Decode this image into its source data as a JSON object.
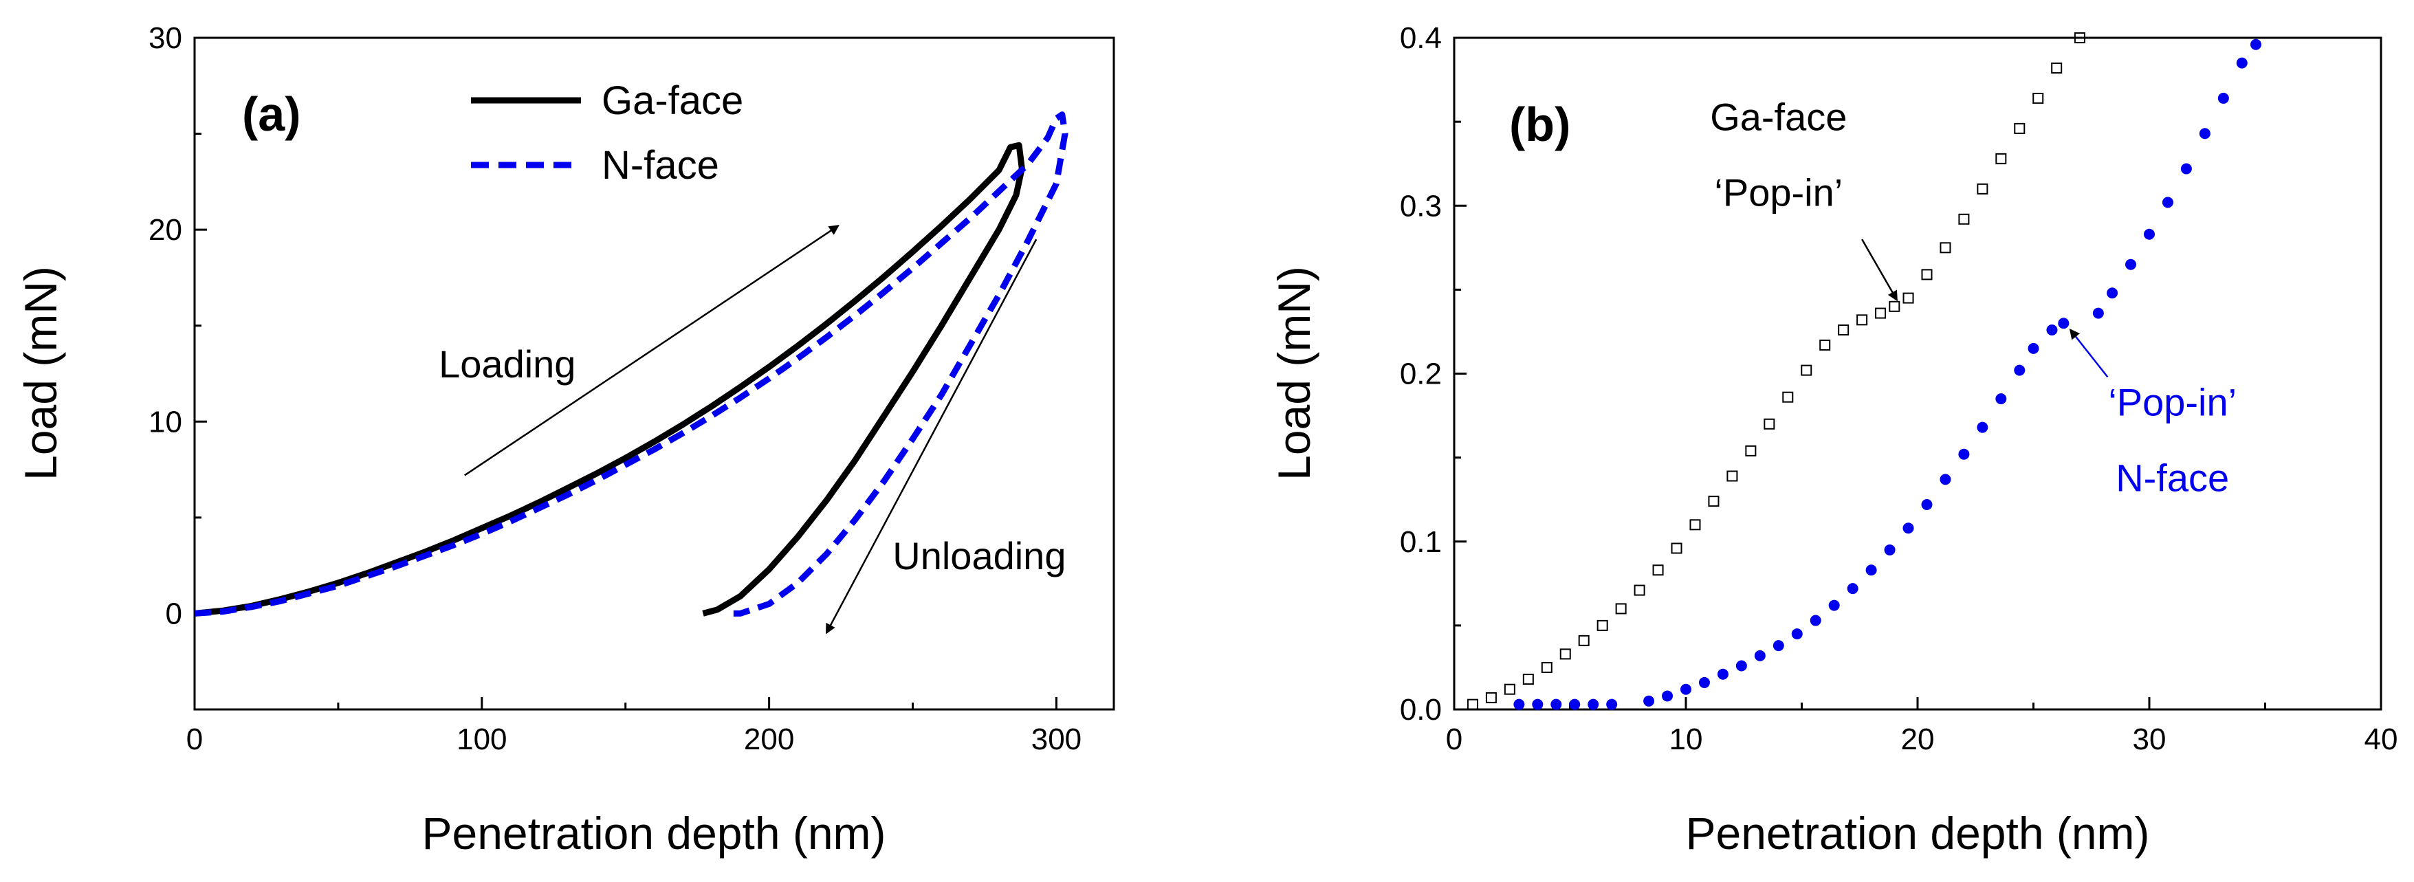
{
  "colors": {
    "ga_face": "#000000",
    "n_face": "#0000ee",
    "axis": "#000000"
  },
  "chart_data": [
    {
      "type": "line",
      "panel_label": "(a)",
      "xlabel": "Penetration depth (nm)",
      "ylabel": "Load (mN)",
      "xlim": [
        0,
        320
      ],
      "ylim": [
        -5,
        30
      ],
      "xticks": [
        0,
        100,
        200,
        300
      ],
      "yticks": [
        0,
        10,
        20,
        30
      ],
      "legend": {
        "placement": "top-left",
        "entries": [
          "Ga-face",
          "N-face"
        ]
      },
      "series": [
        {
          "name": "Ga-face",
          "style": "solid",
          "color": "#000000",
          "x": [
            0,
            10,
            20,
            30,
            40,
            50,
            60,
            70,
            80,
            90,
            100,
            110,
            120,
            130,
            140,
            150,
            160,
            170,
            180,
            190,
            200,
            210,
            220,
            230,
            240,
            250,
            260,
            270,
            280,
            284,
            287,
            288,
            286,
            280,
            270,
            260,
            250,
            240,
            230,
            220,
            210,
            200,
            190,
            182,
            177
          ],
          "y": [
            0,
            0.15,
            0.4,
            0.75,
            1.15,
            1.6,
            2.1,
            2.65,
            3.2,
            3.8,
            4.45,
            5.1,
            5.8,
            6.55,
            7.3,
            8.1,
            8.95,
            9.85,
            10.8,
            11.8,
            12.85,
            13.95,
            15.1,
            16.3,
            17.55,
            18.85,
            20.2,
            21.6,
            23.1,
            24.3,
            24.4,
            23.2,
            21.8,
            20.0,
            17.5,
            15.0,
            12.6,
            10.3,
            8.0,
            5.9,
            4.0,
            2.3,
            0.9,
            0.2,
            0
          ]
        },
        {
          "name": "N-face",
          "style": "dashed",
          "color": "#0000ee",
          "x": [
            0,
            10,
            20,
            30,
            40,
            50,
            60,
            70,
            80,
            90,
            100,
            110,
            120,
            130,
            140,
            150,
            160,
            170,
            180,
            190,
            200,
            210,
            220,
            230,
            240,
            250,
            260,
            270,
            280,
            290,
            297,
            300,
            302,
            303,
            300,
            290,
            280,
            270,
            260,
            250,
            240,
            230,
            220,
            210,
            200,
            190,
            187
          ],
          "y": [
            0,
            0.1,
            0.35,
            0.65,
            1.05,
            1.45,
            1.95,
            2.45,
            3.0,
            3.55,
            4.15,
            4.8,
            5.5,
            6.2,
            6.95,
            7.75,
            8.55,
            9.4,
            10.3,
            11.25,
            12.25,
            13.3,
            14.4,
            15.55,
            16.75,
            18.0,
            19.3,
            20.6,
            22.0,
            23.4,
            24.8,
            25.8,
            26.0,
            25.0,
            22.4,
            19.4,
            16.6,
            14.0,
            11.4,
            9.1,
            6.9,
            4.9,
            3.1,
            1.6,
            0.5,
            0,
            0
          ]
        }
      ],
      "annotations": [
        {
          "text": "Loading",
          "x": 85,
          "y": 12.3,
          "arrow_from": [
            94,
            7.2
          ],
          "arrow_to": [
            224,
            20.2
          ]
        },
        {
          "text": "Unloading",
          "x": 243,
          "y": 2.3,
          "arrow_from": [
            293,
            19.5
          ],
          "arrow_to": [
            220,
            -1.0
          ]
        }
      ]
    },
    {
      "type": "scatter",
      "panel_label": "(b)",
      "xlabel": "Penetration depth (nm)",
      "ylabel": "Load (mN)",
      "xlim": [
        0,
        40
      ],
      "ylim": [
        0,
        0.4
      ],
      "xticks": [
        0,
        10,
        20,
        30,
        40
      ],
      "yticks": [
        0.0,
        0.1,
        0.2,
        0.3,
        0.4
      ],
      "series": [
        {
          "name": "Ga-face",
          "marker": "open-square",
          "color": "#000000",
          "x": [
            0.8,
            1.6,
            2.4,
            3.2,
            4.0,
            4.8,
            5.6,
            6.4,
            7.2,
            8.0,
            8.8,
            9.6,
            10.4,
            11.2,
            12.0,
            12.8,
            13.6,
            14.4,
            15.2,
            16.0,
            16.8,
            17.6,
            18.4,
            19.0,
            19.6,
            20.4,
            21.2,
            22.0,
            22.8,
            23.6,
            24.4,
            25.2,
            26.0,
            27.0
          ],
          "y": [
            0.003,
            0.007,
            0.012,
            0.018,
            0.025,
            0.033,
            0.041,
            0.05,
            0.06,
            0.071,
            0.083,
            0.096,
            0.11,
            0.124,
            0.139,
            0.154,
            0.17,
            0.186,
            0.202,
            0.217,
            0.226,
            0.232,
            0.236,
            0.24,
            0.245,
            0.259,
            0.275,
            0.292,
            0.31,
            0.328,
            0.346,
            0.364,
            0.382,
            0.4
          ]
        },
        {
          "name": "N-face",
          "marker": "filled-circle",
          "color": "#0000ee",
          "x": [
            2.8,
            3.6,
            4.4,
            5.2,
            6.0,
            6.8,
            8.4,
            9.2,
            10.0,
            10.8,
            11.6,
            12.4,
            13.2,
            14.0,
            14.8,
            15.6,
            16.4,
            17.2,
            18.0,
            18.8,
            19.6,
            20.4,
            21.2,
            22.0,
            22.8,
            23.6,
            24.4,
            25.0,
            25.8,
            26.3,
            27.8,
            28.4,
            29.2,
            30.0,
            30.8,
            31.6,
            32.4,
            33.2,
            34.0,
            34.6
          ],
          "y": [
            0.003,
            0.003,
            0.003,
            0.003,
            0.003,
            0.003,
            0.005,
            0.008,
            0.012,
            0.016,
            0.021,
            0.026,
            0.032,
            0.038,
            0.045,
            0.053,
            0.062,
            0.072,
            0.083,
            0.095,
            0.108,
            0.122,
            0.137,
            0.152,
            0.168,
            0.185,
            0.202,
            0.215,
            0.226,
            0.23,
            0.236,
            0.248,
            0.265,
            0.283,
            0.302,
            0.322,
            0.343,
            0.364,
            0.385,
            0.396
          ]
        }
      ],
      "annotations": [
        {
          "text": "Ga-face",
          "x": 14.0,
          "y": 0.345,
          "color": "#000000"
        },
        {
          "text": "‘Pop-in’",
          "x": 14.0,
          "y": 0.3,
          "color": "#000000",
          "arrow_from": [
            17.6,
            0.28
          ],
          "arrow_to": [
            19.1,
            0.244
          ]
        },
        {
          "text": "‘Pop-in’",
          "x": 31.0,
          "y": 0.175,
          "color": "#0000ee",
          "arrow_from": [
            28.2,
            0.198
          ],
          "arrow_to": [
            26.6,
            0.226
          ]
        },
        {
          "text": "N-face",
          "x": 31.0,
          "y": 0.13,
          "color": "#0000ee"
        }
      ]
    }
  ]
}
